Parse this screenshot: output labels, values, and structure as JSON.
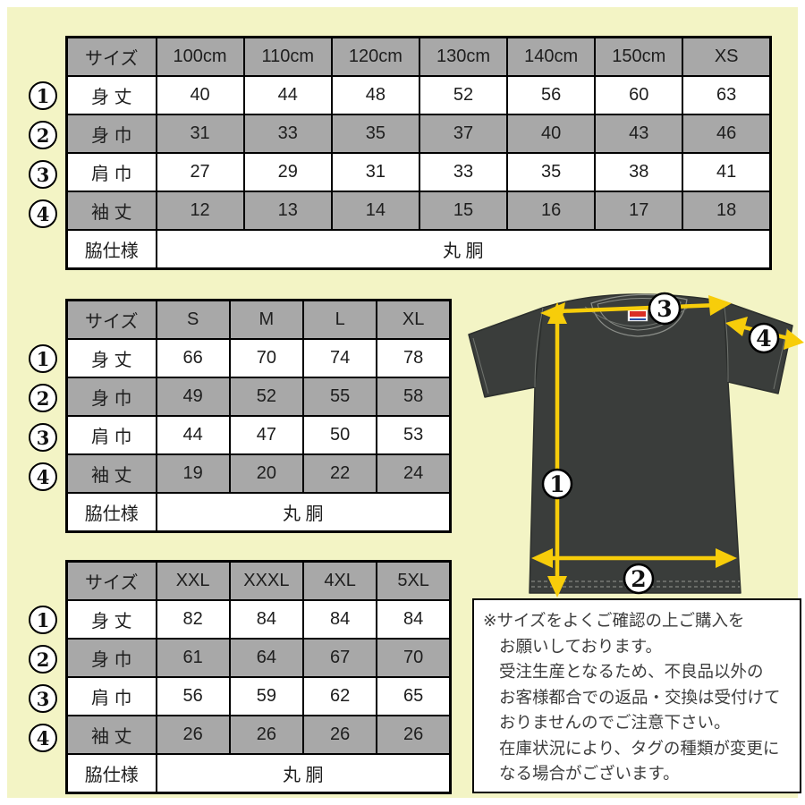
{
  "page": {
    "background": "#f3f4c5",
    "frame": "#ffffff",
    "table_shaded_color": "#a8a8a8",
    "arrow_color": "#f7cd0a",
    "shirt_color": "#3a3d3b"
  },
  "tables": [
    {
      "name": "kids-sizes",
      "header": [
        "サイズ",
        "100cm",
        "110cm",
        "120cm",
        "130cm",
        "140cm",
        "150cm",
        "XS"
      ],
      "rows": [
        {
          "marker": "1",
          "label": "身 丈",
          "values": [
            "40",
            "44",
            "48",
            "52",
            "56",
            "60",
            "63"
          ]
        },
        {
          "marker": "2",
          "label": "身 巾",
          "values": [
            "31",
            "33",
            "35",
            "37",
            "40",
            "43",
            "46"
          ]
        },
        {
          "marker": "3",
          "label": "肩 巾",
          "values": [
            "27",
            "29",
            "31",
            "33",
            "35",
            "38",
            "41"
          ]
        },
        {
          "marker": "4",
          "label": "袖 丈",
          "values": [
            "12",
            "13",
            "14",
            "15",
            "16",
            "17",
            "18"
          ]
        }
      ],
      "footer": {
        "label": "脇仕様",
        "value": "丸 胴"
      }
    },
    {
      "name": "adult-sizes",
      "header": [
        "サイズ",
        "S",
        "M",
        "L",
        "XL"
      ],
      "rows": [
        {
          "marker": "1",
          "label": "身 丈",
          "values": [
            "66",
            "70",
            "74",
            "78"
          ]
        },
        {
          "marker": "2",
          "label": "身 巾",
          "values": [
            "49",
            "52",
            "55",
            "58"
          ]
        },
        {
          "marker": "3",
          "label": "肩 巾",
          "values": [
            "44",
            "47",
            "50",
            "53"
          ]
        },
        {
          "marker": "4",
          "label": "袖 丈",
          "values": [
            "19",
            "20",
            "22",
            "24"
          ]
        }
      ],
      "footer": {
        "label": "脇仕様",
        "value": "丸 胴"
      }
    },
    {
      "name": "big-sizes",
      "header": [
        "サイズ",
        "XXL",
        "XXXL",
        "4XL",
        "5XL"
      ],
      "rows": [
        {
          "marker": "1",
          "label": "身 丈",
          "values": [
            "82",
            "84",
            "84",
            "84"
          ]
        },
        {
          "marker": "2",
          "label": "身 巾",
          "values": [
            "61",
            "64",
            "67",
            "70"
          ]
        },
        {
          "marker": "3",
          "label": "肩 巾",
          "values": [
            "56",
            "59",
            "62",
            "65"
          ]
        },
        {
          "marker": "4",
          "label": "袖 丈",
          "values": [
            "26",
            "26",
            "26",
            "26"
          ]
        }
      ],
      "footer": {
        "label": "脇仕様",
        "value": "丸 胴"
      }
    }
  ],
  "diagram": {
    "labels": {
      "length": "1",
      "width": "2",
      "shoulder": "3",
      "sleeve": "4"
    }
  },
  "note": {
    "lines": [
      "※サイズをよくご確認の上ご購入を",
      "お願いしております。",
      "受注生産となるため、不良品以外の",
      "お客様都合での返品・交換は受付けて",
      "おりませんのでご注意下さい。",
      "在庫状況により、タグの種類が変更に",
      "なる場合がございます。"
    ]
  }
}
